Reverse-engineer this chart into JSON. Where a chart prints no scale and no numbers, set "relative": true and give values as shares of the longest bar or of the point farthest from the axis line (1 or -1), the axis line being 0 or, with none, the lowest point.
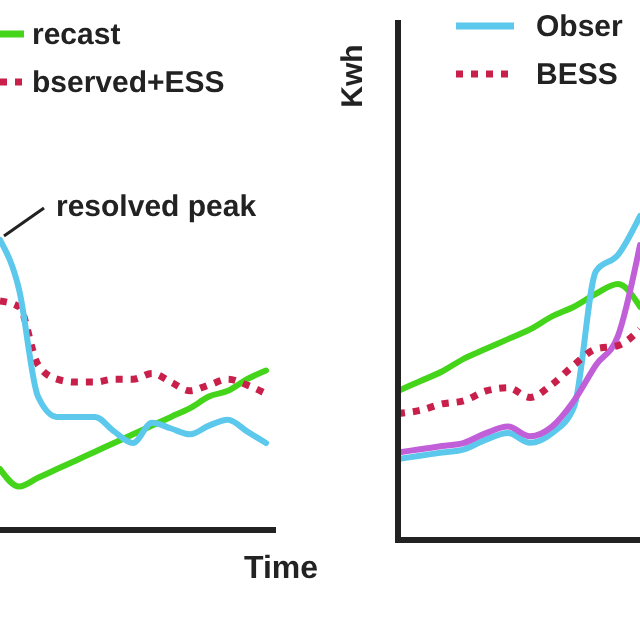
{
  "chart_data": [
    {
      "type": "line",
      "relative": true,
      "xlabel": "Time",
      "annotations": [
        "resolved peak"
      ],
      "legend": "top",
      "categories": [
        null,
        null,
        null,
        null,
        null,
        null,
        null,
        null,
        null,
        null,
        null,
        null,
        null,
        null,
        null
      ],
      "series": [
        {
          "name": "recast",
          "color": "#44d41a",
          "values": [
            0.21,
            0.15,
            0.18,
            0.21,
            0.24,
            0.27,
            0.3,
            0.33,
            0.36,
            0.39,
            0.42,
            0.46,
            0.48,
            0.52,
            0.55
          ]
        },
        {
          "name": "bserved+ESS",
          "color": "#c8204a",
          "line_style": "dotted",
          "values": [
            0.79,
            0.77,
            0.57,
            0.52,
            0.51,
            0.51,
            0.52,
            0.52,
            0.54,
            0.51,
            0.48,
            0.5,
            0.52,
            0.5,
            0.47
          ]
        },
        {
          "color": "#5bc8ec",
          "values": [
            1,
            0.83,
            0.46,
            0.39,
            0.39,
            0.39,
            0.34,
            0.3,
            0.37,
            0.35,
            0.33,
            0.36,
            0.38,
            0.34,
            0.3
          ]
        }
      ]
    },
    {
      "type": "line",
      "relative": true,
      "ylabel": "Kwh",
      "legend": "top",
      "categories": [
        null,
        null,
        null,
        null,
        null,
        null,
        null,
        null,
        null,
        null,
        null,
        null
      ],
      "series": [
        {
          "color": "#44d41a",
          "values": [
            0.46,
            0.49,
            0.52,
            0.56,
            0.59,
            0.62,
            0.65,
            0.69,
            0.72,
            0.76,
            0.79,
            0.72
          ]
        },
        {
          "name": "Obser",
          "color": "#5bc8ec",
          "values": [
            0.25,
            0.26,
            0.27,
            0.28,
            0.31,
            0.33,
            0.3,
            0.33,
            0.41,
            0.83,
            0.88,
            1
          ]
        },
        {
          "color": "#c05fd8",
          "values": [
            0.27,
            0.28,
            0.29,
            0.3,
            0.33,
            0.35,
            0.32,
            0.35,
            0.43,
            0.54,
            0.63,
            0.91
          ]
        },
        {
          "name": "BESS",
          "color": "#c8204a",
          "line_style": "dotted",
          "values": [
            0.39,
            0.4,
            0.42,
            0.43,
            0.46,
            0.47,
            0.44,
            0.48,
            0.54,
            0.59,
            0.6,
            0.65
          ]
        }
      ]
    }
  ]
}
